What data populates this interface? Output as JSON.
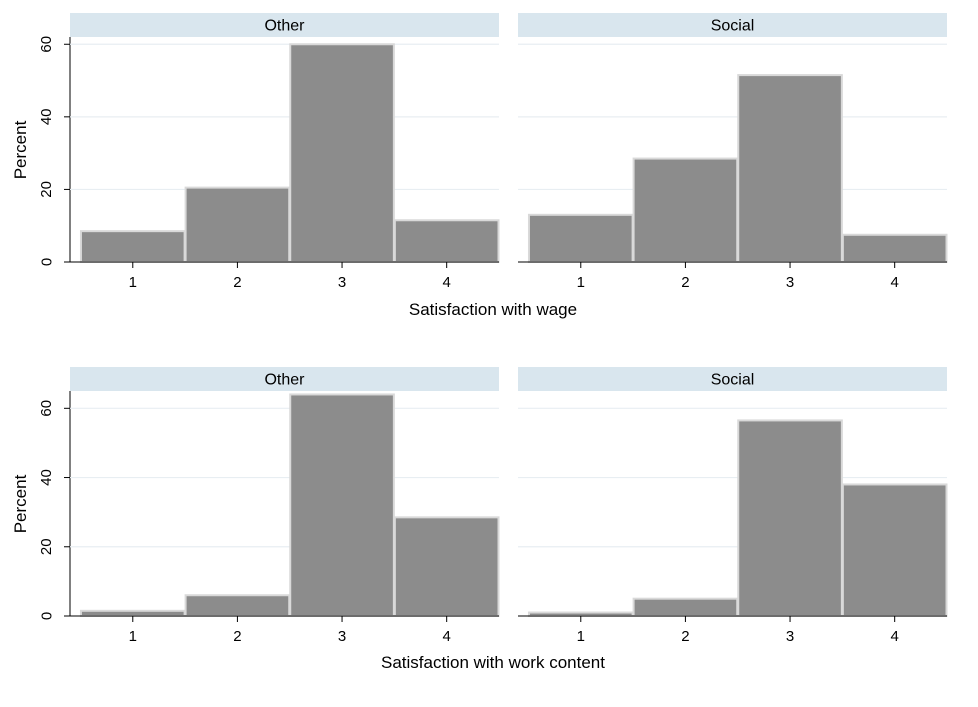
{
  "chart_data": [
    {
      "type": "bar",
      "group_title": "Satisfaction with wage",
      "ylabel": "Percent",
      "ylim": [
        0,
        62
      ],
      "yticks": [
        0,
        20,
        40,
        60
      ],
      "categories": [
        "1",
        "2",
        "3",
        "4"
      ],
      "xlim": [
        0.4,
        4.5
      ],
      "grid": true,
      "panels": [
        {
          "title": "Other",
          "values": [
            8.5,
            20.5,
            60.0,
            11.5
          ]
        },
        {
          "title": "Social",
          "values": [
            13.0,
            28.5,
            51.5,
            7.5
          ]
        }
      ]
    },
    {
      "type": "bar",
      "group_title": "Satisfaction with work content",
      "ylabel": "Percent",
      "ylim": [
        0,
        65
      ],
      "yticks": [
        0,
        20,
        40,
        60
      ],
      "categories": [
        "1",
        "2",
        "3",
        "4"
      ],
      "xlim": [
        0.4,
        4.5
      ],
      "grid": true,
      "panels": [
        {
          "title": "Other",
          "values": [
            1.5,
            6.0,
            64.0,
            28.5
          ]
        },
        {
          "title": "Social",
          "values": [
            1.0,
            5.0,
            56.5,
            38.0
          ]
        }
      ]
    }
  ],
  "colors": {
    "bar_fill": "#8c8c8c",
    "bar_edge": "#d9d9d9",
    "strip_fill": "#d9e6ee",
    "grid": "#e8eef2",
    "axis": "#000000"
  }
}
